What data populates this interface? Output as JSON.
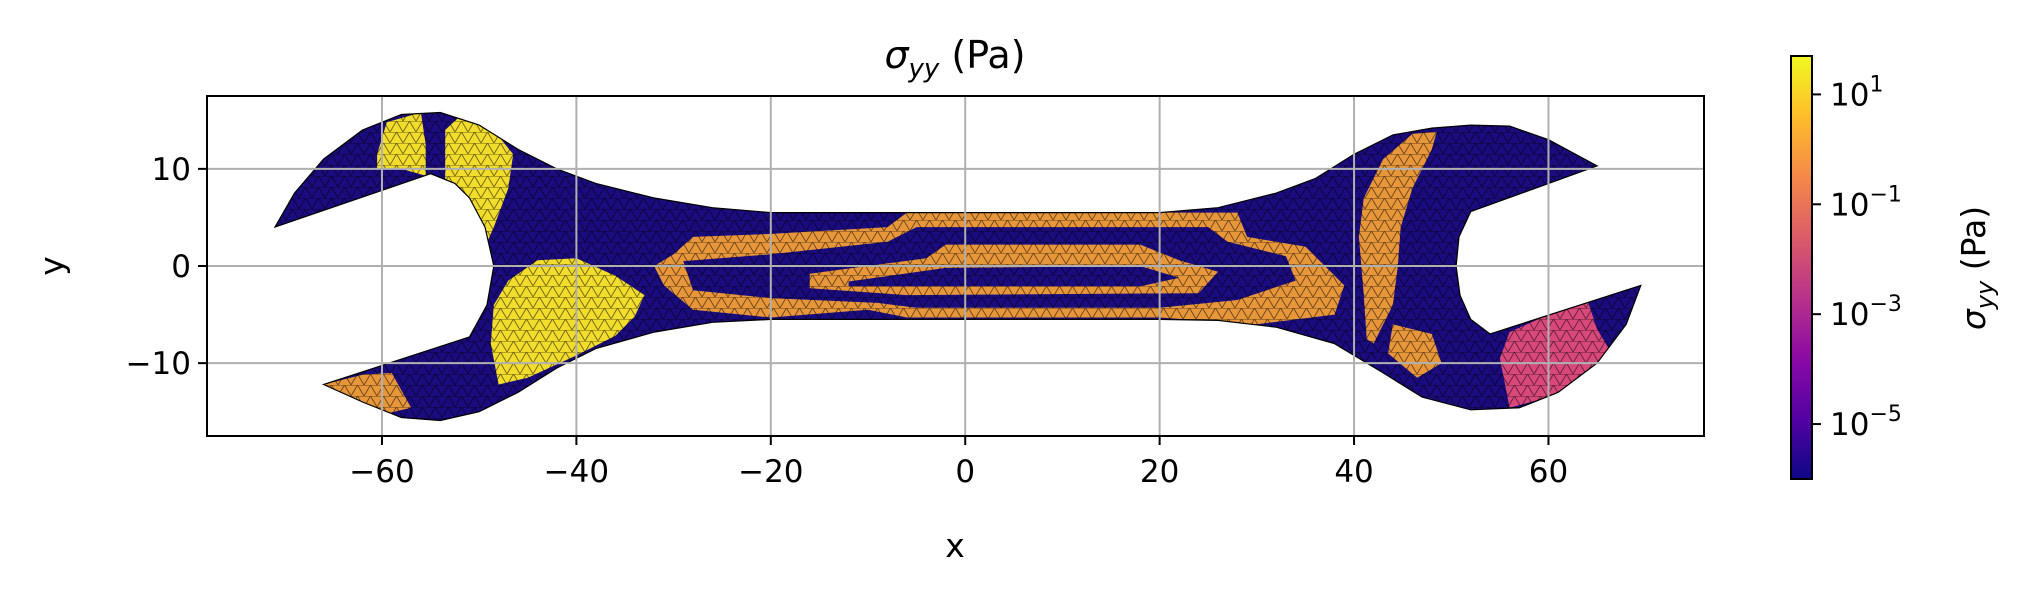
{
  "chart_data": {
    "type": "heatmap",
    "title": {
      "symbol": "σ",
      "subscript": "yy",
      "unit": " (Pa)"
    },
    "xlabel": "x",
    "ylabel": "y",
    "xlim": [
      -78,
      76
    ],
    "ylim": [
      -17.5,
      17.5
    ],
    "xticks": [
      -60,
      -40,
      -20,
      0,
      20,
      40,
      60
    ],
    "xtick_labels": [
      "−60",
      "−40",
      "−20",
      "0",
      "20",
      "40",
      "60"
    ],
    "yticks": [
      -10,
      0,
      10
    ],
    "ytick_labels": [
      "−10",
      "0",
      "10"
    ],
    "grid": true,
    "colorbar": {
      "label": {
        "symbol": "σ",
        "subscript": "yy",
        "unit": " (Pa)"
      },
      "scale": "log",
      "range": [
        1e-06,
        50
      ],
      "ticks": [
        {
          "base": "10",
          "exp": "1",
          "value": 10
        },
        {
          "base": "10",
          "exp": "−1",
          "value": 0.1
        },
        {
          "base": "10",
          "exp": "−3",
          "value": 0.001
        },
        {
          "base": "10",
          "exp": "−5",
          "value": 1e-05
        }
      ],
      "colormap": "plasma",
      "colormap_stops": [
        "#0d0887",
        "#5302a3",
        "#8b0aa5",
        "#b83289",
        "#db5c68",
        "#f48849",
        "#febd2a",
        "#f0f921"
      ]
    },
    "colors": {
      "low": "#1a0b7e",
      "mid": "#e8963a",
      "high": "#f2dc2c",
      "pink": "#d9487a",
      "mesh": "#000000",
      "grid": "#b0b0b0"
    },
    "regions": [
      {
        "level": "low",
        "shape": "wrench-body"
      },
      {
        "level": "mid",
        "shape": "center-outer-band"
      },
      {
        "level": "low",
        "shape": "center-inner-band"
      },
      {
        "level": "mid",
        "shape": "center-core-strip"
      },
      {
        "level": "low",
        "shape": "center-core-slit"
      },
      {
        "level": "high",
        "shape": "left-head-lower-band"
      },
      {
        "level": "high",
        "shape": "left-head-upper-band"
      },
      {
        "level": "high",
        "shape": "left-jaw-tip"
      },
      {
        "level": "mid",
        "shape": "left-lower-jaw-edge"
      },
      {
        "level": "mid",
        "shape": "right-head-band"
      },
      {
        "level": "pink",
        "shape": "right-lower-jaw"
      },
      {
        "level": "mid",
        "shape": "right-neck-patch"
      }
    ]
  }
}
